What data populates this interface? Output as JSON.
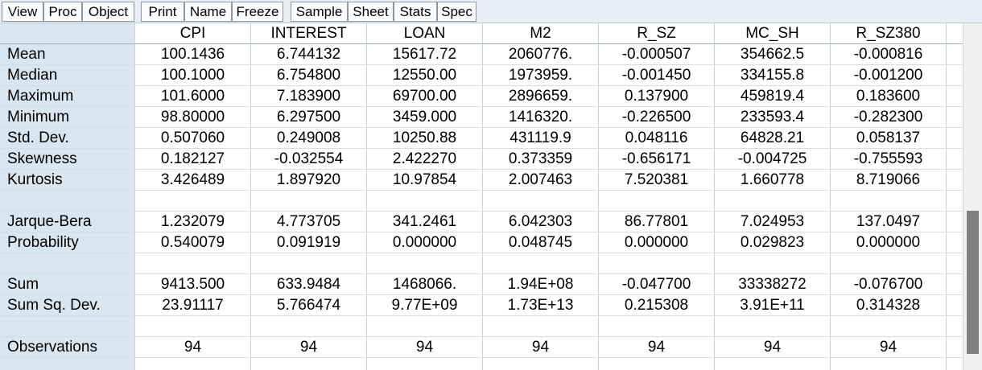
{
  "toolbar": {
    "buttons": [
      "View",
      "Proc",
      "Object",
      "Print",
      "Name",
      "Freeze",
      "Sample",
      "Sheet",
      "Stats",
      "Spec"
    ]
  },
  "table": {
    "columns": [
      "CPI",
      "INTEREST",
      "LOAN",
      "M2",
      "R_SZ",
      "MC_SH",
      "R_SZ380"
    ],
    "rows": [
      {
        "label": "Mean",
        "values": [
          "100.1436",
          "6.744132",
          "15617.72",
          "2060776.",
          "-0.000507",
          "354662.5",
          "-0.000816"
        ]
      },
      {
        "label": "Median",
        "values": [
          "100.1000",
          "6.754800",
          "12550.00",
          "1973959.",
          "-0.001450",
          "334155.8",
          "-0.001200"
        ]
      },
      {
        "label": "Maximum",
        "values": [
          "101.6000",
          "7.183900",
          "69700.00",
          "2896659.",
          "0.137900",
          "459819.4",
          "0.183600"
        ]
      },
      {
        "label": "Minimum",
        "values": [
          "98.80000",
          "6.297500",
          "3459.000",
          "1416320.",
          "-0.226500",
          "233593.4",
          "-0.282300"
        ]
      },
      {
        "label": "Std. Dev.",
        "values": [
          "0.507060",
          "0.249008",
          "10250.88",
          "431119.9",
          "0.048116",
          "64828.21",
          "0.058137"
        ]
      },
      {
        "label": "Skewness",
        "values": [
          "0.182127",
          "-0.032554",
          "2.422270",
          "0.373359",
          "-0.656171",
          "-0.004725",
          "-0.755593"
        ]
      },
      {
        "label": "Kurtosis",
        "values": [
          "3.426489",
          "1.897920",
          "10.97854",
          "2.007463",
          "7.520381",
          "1.660778",
          "8.719066"
        ]
      },
      {
        "label": "",
        "values": [
          "",
          "",
          "",
          "",
          "",
          "",
          ""
        ]
      },
      {
        "label": "Jarque-Bera",
        "values": [
          "1.232079",
          "4.773705",
          "341.2461",
          "6.042303",
          "86.77801",
          "7.024953",
          "137.0497"
        ]
      },
      {
        "label": "Probability",
        "values": [
          "0.540079",
          "0.091919",
          "0.000000",
          "0.048745",
          "0.000000",
          "0.029823",
          "0.000000"
        ]
      },
      {
        "label": "",
        "values": [
          "",
          "",
          "",
          "",
          "",
          "",
          ""
        ]
      },
      {
        "label": "Sum",
        "values": [
          "9413.500",
          "633.9484",
          "1468066.",
          "1.94E+08",
          "-0.047700",
          "33338272",
          "-0.076700"
        ]
      },
      {
        "label": "Sum Sq. Dev.",
        "values": [
          "23.91117",
          "5.766474",
          "9.77E+09",
          "1.73E+13",
          "0.215308",
          "3.91E+11",
          "0.314328"
        ]
      },
      {
        "label": "",
        "values": [
          "",
          "",
          "",
          "",
          "",
          "",
          ""
        ]
      },
      {
        "label": "Observations",
        "values": [
          "94",
          "94",
          "94",
          "94",
          "94",
          "94",
          "94"
        ]
      },
      {
        "label": "",
        "values": [
          "",
          "",
          "",
          "",
          "",
          "",
          ""
        ]
      }
    ]
  },
  "colors": {
    "stub_background": "#d8e6f2",
    "toolbar_background": "#e9eef4",
    "scroll_thumb": "#7f7f7f"
  }
}
